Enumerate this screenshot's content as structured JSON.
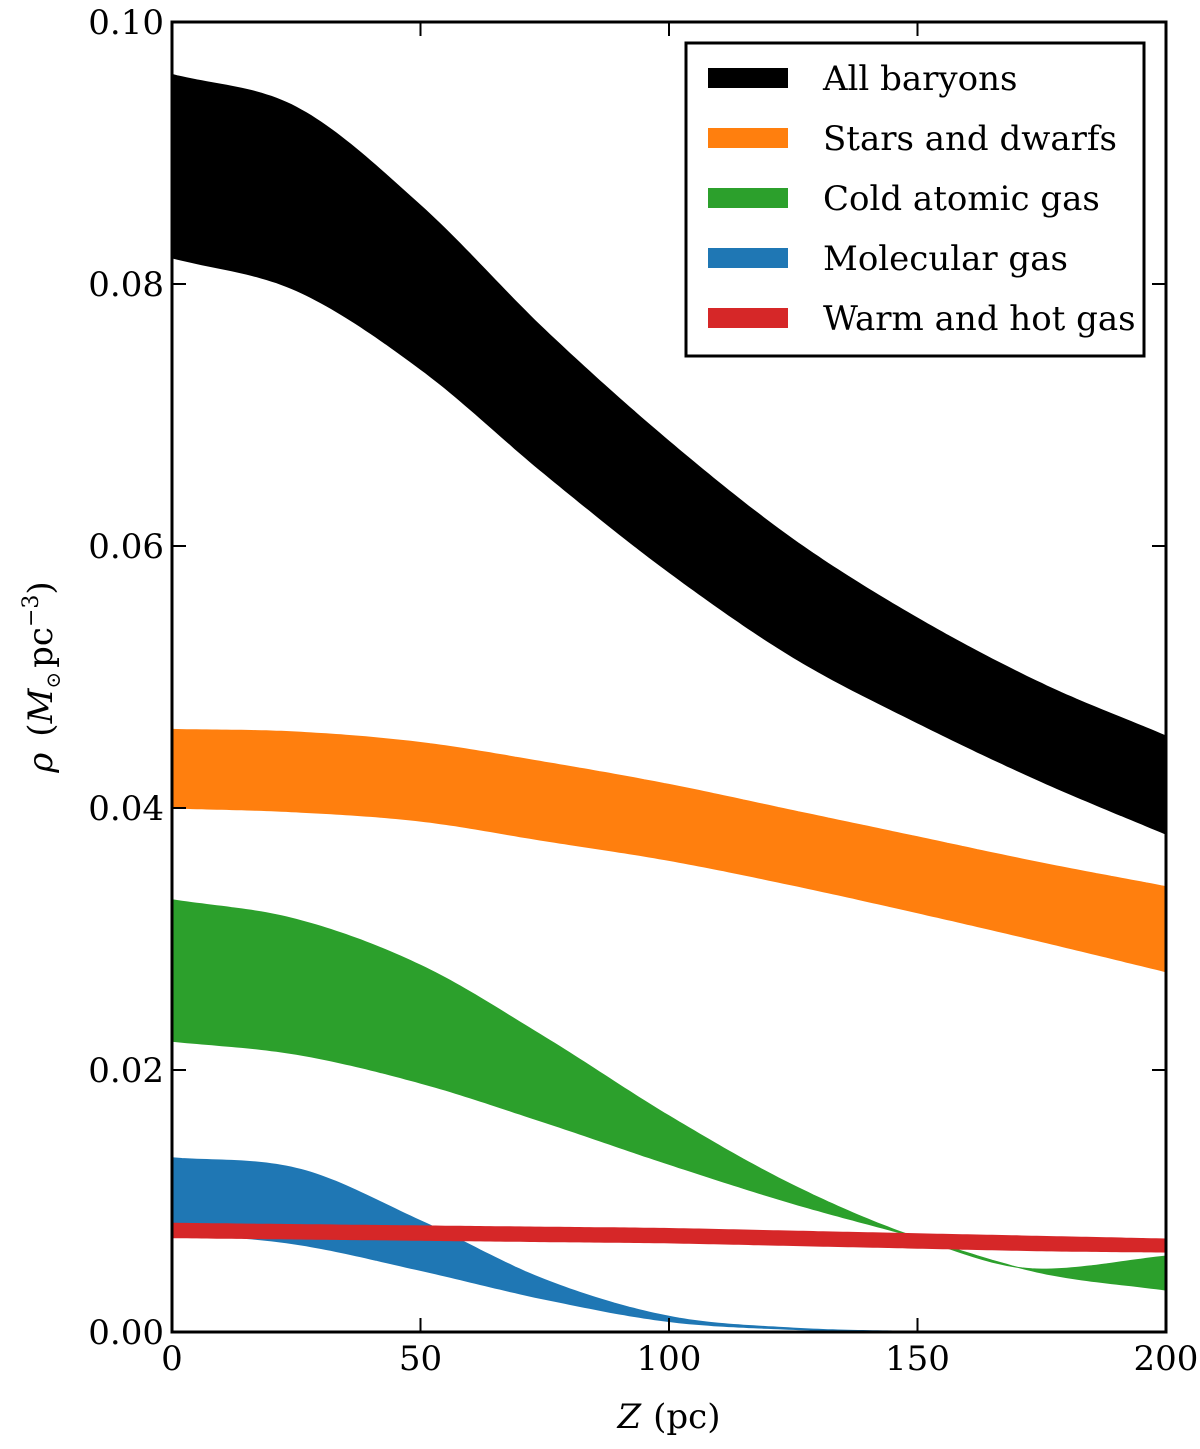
{
  "chart_data": {
    "type": "area",
    "title": "",
    "xlabel_var": "Z",
    "xlabel_unit": "(pc)",
    "ylabel_var": "ρ",
    "ylabel_unit_open": "(",
    "ylabel_unit_M": "M",
    "ylabel_unit_sub": "⊙",
    "ylabel_unit_pc": "pc",
    "ylabel_unit_exp": "−3",
    "ylabel_unit_close": ")",
    "xlim": [
      0,
      200
    ],
    "ylim": [
      0,
      0.1
    ],
    "xticks": [
      0,
      50,
      100,
      150,
      200
    ],
    "xtick_labels": [
      "0",
      "50",
      "100",
      "150",
      "200"
    ],
    "yticks": [
      0,
      0.02,
      0.04,
      0.06,
      0.08,
      0.1
    ],
    "ytick_labels": [
      "0.00",
      "0.02",
      "0.04",
      "0.06",
      "0.08",
      "0.10"
    ],
    "legend_position": "top-right",
    "x": [
      0,
      25,
      50,
      75,
      100,
      125,
      150,
      175,
      200
    ],
    "series": [
      {
        "name": "All baryons",
        "color": "#000000",
        "upper": [
          0.096,
          0.0935,
          0.086,
          0.0765,
          0.068,
          0.0605,
          0.0545,
          0.0495,
          0.0455
        ],
        "lower": [
          0.082,
          0.0795,
          0.0735,
          0.0655,
          0.058,
          0.0515,
          0.0465,
          0.042,
          0.038
        ]
      },
      {
        "name": "Stars and dwarfs",
        "color": "#ff7f0e",
        "upper": [
          0.046,
          0.0458,
          0.045,
          0.0435,
          0.0418,
          0.0398,
          0.0378,
          0.0358,
          0.034
        ],
        "lower": [
          0.04,
          0.0397,
          0.039,
          0.0375,
          0.036,
          0.0341,
          0.032,
          0.0298,
          0.0275
        ]
      },
      {
        "name": "Cold atomic gas",
        "color": "#2ca02c",
        "upper": [
          0.033,
          0.0315,
          0.028,
          0.0225,
          0.0165,
          0.0112,
          0.0072,
          0.0048,
          0.0058
        ],
        "lower": [
          0.0222,
          0.0212,
          0.019,
          0.016,
          0.0128,
          0.0098,
          0.0072,
          0.0045,
          0.0032
        ]
      },
      {
        "name": "Molecular gas",
        "color": "#1f77b4",
        "upper": [
          0.0133,
          0.0125,
          0.0085,
          0.004,
          0.0012,
          0.0003,
          5e-05,
          0.0,
          0.0
        ],
        "lower": [
          0.0076,
          0.0067,
          0.0047,
          0.0025,
          0.0008,
          0.0002,
          4e-05,
          0.0,
          0.0
        ]
      },
      {
        "name": "Warm and hot gas",
        "color": "#d62728",
        "upper": [
          0.0083,
          0.0082,
          0.0081,
          0.008,
          0.0079,
          0.0077,
          0.0075,
          0.0073,
          0.0071
        ],
        "lower": [
          0.0072,
          0.0071,
          0.007,
          0.0069,
          0.0068,
          0.0066,
          0.0064,
          0.0062,
          0.0061
        ]
      }
    ]
  }
}
